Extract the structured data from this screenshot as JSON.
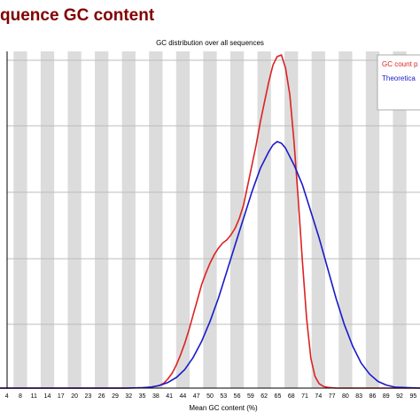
{
  "page": {
    "title": "quence GC content"
  },
  "chart_data": {
    "type": "line",
    "title": "GC distribution over all sequences",
    "xlabel": "Mean GC content (%)",
    "ylabel": "",
    "xlim": [
      0,
      100
    ],
    "ylim": [
      0,
      100
    ],
    "grid": true,
    "legend": "top-right",
    "x_ticks": [
      "4",
      "8",
      "11",
      "14",
      "17",
      "20",
      "23",
      "26",
      "29",
      "32",
      "35",
      "38",
      "41",
      "44",
      "47",
      "50",
      "53",
      "56",
      "59",
      "62",
      "65",
      "68",
      "71",
      "74",
      "77",
      "80",
      "83",
      "86",
      "89",
      "92",
      "95"
    ],
    "series": [
      {
        "name": "GC count p",
        "color": "#dd2222",
        "x": [
          0,
          20,
          30,
          34,
          36,
          38,
          39,
          40,
          41,
          42,
          43,
          44,
          45,
          46,
          47,
          48,
          49,
          50,
          51,
          52,
          53,
          54,
          55,
          56,
          57,
          58,
          59,
          60,
          61,
          62,
          63,
          64,
          65,
          66,
          67,
          68,
          69,
          70,
          71,
          72,
          73,
          74,
          75,
          76,
          77,
          78,
          80,
          90,
          100
        ],
        "y": [
          0,
          0,
          0,
          0.1,
          0.3,
          0.8,
          1.5,
          2.8,
          4.5,
          7,
          10,
          13.5,
          17.5,
          22,
          26.5,
          31,
          34.5,
          37.5,
          40,
          42,
          43.5,
          44.5,
          46,
          48,
          51,
          55,
          61,
          67,
          73,
          80,
          86,
          92,
          97,
          99.5,
          100,
          96,
          88,
          74,
          57,
          38,
          21,
          9,
          3.5,
          1.3,
          0.5,
          0.2,
          0,
          0,
          0
        ]
      },
      {
        "name": "Theoretica",
        "color": "#1a1acc",
        "x": [
          0,
          20,
          30,
          34,
          36,
          38,
          40,
          42,
          44,
          46,
          48,
          50,
          52,
          54,
          56,
          58,
          60,
          62,
          64,
          65,
          66,
          67,
          68,
          70,
          72,
          74,
          76,
          78,
          80,
          82,
          84,
          86,
          88,
          90,
          92,
          94,
          100
        ],
        "y": [
          0,
          0,
          0,
          0.1,
          0.3,
          0.8,
          1.7,
          3.2,
          5.6,
          9.2,
          14,
          20,
          27,
          35,
          43,
          51,
          59,
          66,
          71,
          73,
          74,
          73.5,
          72,
          67,
          61,
          53,
          45,
          36,
          27,
          19,
          12.5,
          7.5,
          4.2,
          2,
          0.9,
          0.3,
          0
        ]
      }
    ]
  }
}
